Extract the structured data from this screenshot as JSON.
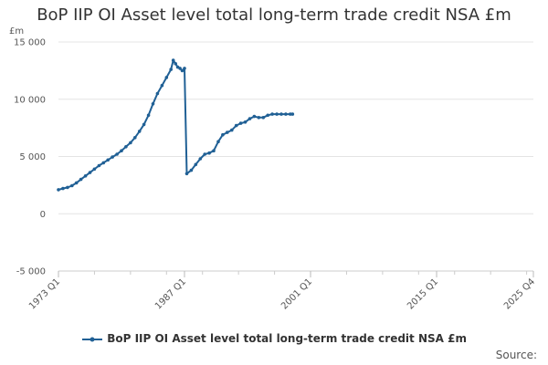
{
  "chart_data": {
    "type": "line",
    "title": "BoP IIP OI Asset level total long-term trade credit NSA £m",
    "ylabel": "£m",
    "xlabel": "",
    "ylim": [
      -5000,
      15000
    ],
    "y_ticks": [
      {
        "value": -5000,
        "label": "-5 000"
      },
      {
        "value": 0,
        "label": "0"
      },
      {
        "value": 5000,
        "label": "5 000"
      },
      {
        "value": 10000,
        "label": "10 000"
      },
      {
        "value": 15000,
        "label": "15 000"
      }
    ],
    "x_range": [
      "1973 Q1",
      "2025 Q4"
    ],
    "x_ticks": [
      "1973 Q1",
      "1987 Q1",
      "2001 Q1",
      "2015 Q1",
      "2025 Q4"
    ],
    "grid": "horizontal",
    "legend_position": "bottom",
    "color": "#206095",
    "series": [
      {
        "name": "BoP IIP OI Asset level total long-term trade credit NSA £m",
        "points": [
          [
            "1973 Q1",
            2100
          ],
          [
            "1973 Q3",
            2200
          ],
          [
            "1974 Q1",
            2300
          ],
          [
            "1974 Q3",
            2450
          ],
          [
            "1975 Q1",
            2700
          ],
          [
            "1975 Q3",
            3000
          ],
          [
            "1976 Q1",
            3300
          ],
          [
            "1976 Q3",
            3600
          ],
          [
            "1977 Q1",
            3900
          ],
          [
            "1977 Q3",
            4200
          ],
          [
            "1978 Q1",
            4450
          ],
          [
            "1978 Q3",
            4700
          ],
          [
            "1979 Q1",
            4950
          ],
          [
            "1979 Q3",
            5200
          ],
          [
            "1980 Q1",
            5500
          ],
          [
            "1980 Q3",
            5850
          ],
          [
            "1981 Q1",
            6200
          ],
          [
            "1981 Q3",
            6650
          ],
          [
            "1982 Q1",
            7200
          ],
          [
            "1982 Q3",
            7800
          ],
          [
            "1983 Q1",
            8600
          ],
          [
            "1983 Q3",
            9600
          ],
          [
            "1984 Q1",
            10500
          ],
          [
            "1984 Q3",
            11200
          ],
          [
            "1985 Q1",
            11900
          ],
          [
            "1985 Q3",
            12600
          ],
          [
            "1985 Q4",
            13400
          ],
          [
            "1986 Q1",
            13100
          ],
          [
            "1986 Q2",
            12800
          ],
          [
            "1986 Q3",
            12700
          ],
          [
            "1986 Q4",
            12500
          ],
          [
            "1987 Q1",
            12700
          ],
          [
            "1987 Q2",
            3500
          ],
          [
            "1987 Q4",
            3800
          ],
          [
            "1988 Q2",
            4300
          ],
          [
            "1988 Q4",
            4800
          ],
          [
            "1989 Q2",
            5200
          ],
          [
            "1989 Q4",
            5300
          ],
          [
            "1990 Q2",
            5500
          ],
          [
            "1990 Q4",
            6300
          ],
          [
            "1991 Q2",
            6900
          ],
          [
            "1991 Q4",
            7100
          ],
          [
            "1992 Q2",
            7300
          ],
          [
            "1992 Q4",
            7700
          ],
          [
            "1993 Q2",
            7900
          ],
          [
            "1993 Q4",
            8000
          ],
          [
            "1994 Q2",
            8300
          ],
          [
            "1994 Q4",
            8500
          ],
          [
            "1995 Q2",
            8400
          ],
          [
            "1995 Q4",
            8400
          ],
          [
            "1996 Q2",
            8600
          ],
          [
            "1996 Q4",
            8700
          ],
          [
            "1997 Q2",
            8700
          ],
          [
            "1997 Q4",
            8700
          ],
          [
            "1998 Q2",
            8700
          ],
          [
            "1998 Q4",
            8700
          ],
          [
            "1999 Q1",
            8700
          ]
        ]
      }
    ]
  },
  "source": {
    "label": "Source:"
  }
}
